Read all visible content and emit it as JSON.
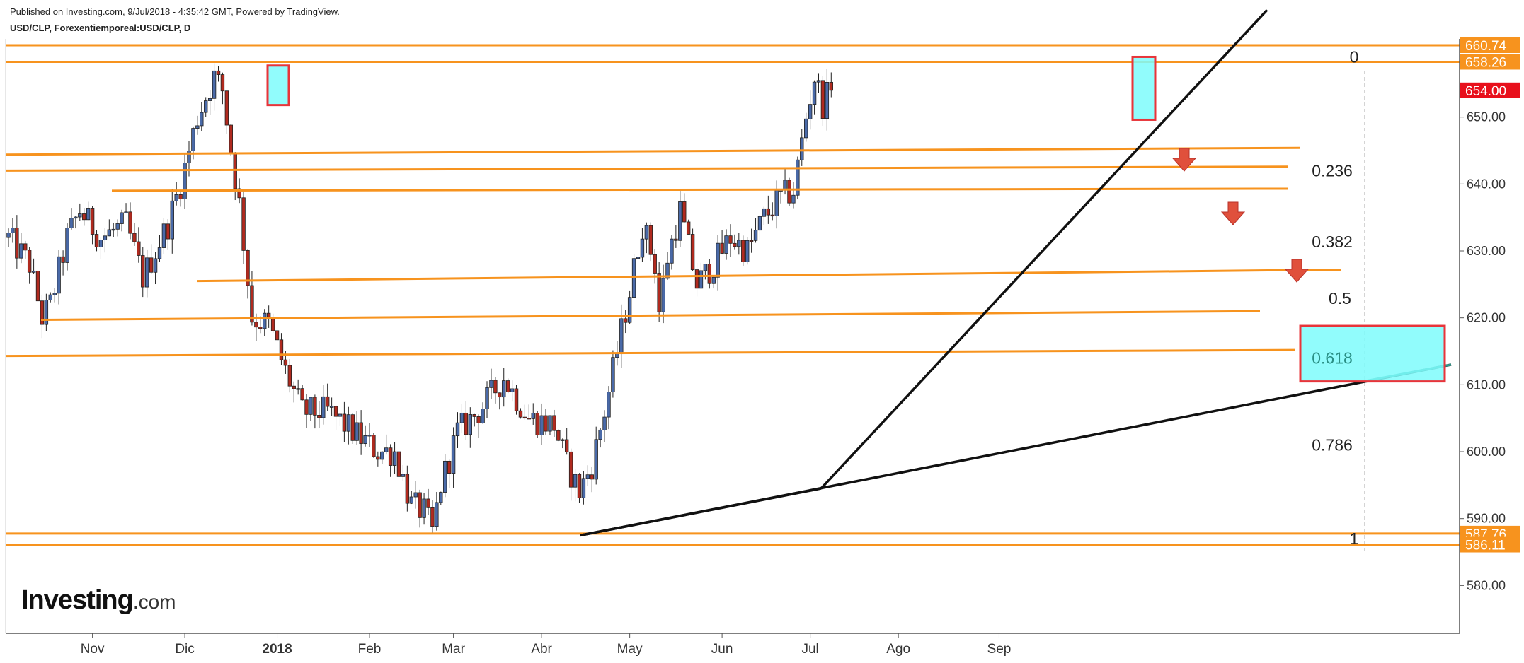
{
  "header": {
    "published": "Published on Investing.com, 9/Jul/2018 - 4:35:42 GMT, Powered by TradingView.",
    "symbol": "USD/CLP, Forexentiemporeal:USD/CLP, D"
  },
  "logo": {
    "main": "Investing",
    "suffix": ".com"
  },
  "chart_data": {
    "type": "candlestick",
    "y_range": [
      574,
      665
    ],
    "y_ticks": [
      "580.00",
      "590.00",
      "600.00",
      "610.00",
      "620.00",
      "630.00",
      "640.00",
      "650.00"
    ],
    "x_ticks": [
      {
        "label": "Nov",
        "bold": false
      },
      {
        "label": "Dic",
        "bold": false
      },
      {
        "label": "2018",
        "bold": true
      },
      {
        "label": "Feb",
        "bold": false
      },
      {
        "label": "Mar",
        "bold": false
      },
      {
        "label": "Abr",
        "bold": false
      },
      {
        "label": "May",
        "bold": false
      },
      {
        "label": "Jun",
        "bold": false
      },
      {
        "label": "Jul",
        "bold": false
      },
      {
        "label": "Ago",
        "bold": false
      },
      {
        "label": "Sep",
        "bold": false
      }
    ],
    "price_badges": [
      {
        "label": "660.74",
        "value": 660.74,
        "color": "#f7931e"
      },
      {
        "label": "658.26",
        "value": 658.26,
        "color": "#f7931e"
      },
      {
        "label": "654.00",
        "value": 654.0,
        "color": "#e8101c"
      },
      {
        "label": "587.76",
        "value": 587.76,
        "color": "#f7931e"
      },
      {
        "label": "586.11",
        "value": 586.11,
        "color": "#f7931e"
      }
    ],
    "fib_labels": [
      "0",
      "0.236",
      "0.382",
      "0.5",
      "0.618",
      "0.786",
      "1"
    ],
    "colors": {
      "up": "#4a6aa8",
      "down": "#b02a1f",
      "support": "#f7931e",
      "trend": "#111111",
      "highlight_fill": "#7efcfc",
      "highlight_border": "#e8343a",
      "arrow": "#e0503c"
    },
    "start_close": 632,
    "waypoints": [
      [
        0,
        632
      ],
      [
        5,
        628
      ],
      [
        8,
        620
      ],
      [
        10,
        622
      ],
      [
        14,
        632
      ],
      [
        17,
        636
      ],
      [
        22,
        632
      ],
      [
        28,
        634
      ],
      [
        32,
        626
      ],
      [
        38,
        634
      ],
      [
        41,
        640
      ],
      [
        45,
        650
      ],
      [
        49,
        656
      ],
      [
        51,
        654
      ],
      [
        53,
        645
      ],
      [
        55,
        637
      ],
      [
        58,
        620
      ],
      [
        62,
        619
      ],
      [
        66,
        612
      ],
      [
        70,
        606
      ],
      [
        76,
        606
      ],
      [
        82,
        603
      ],
      [
        88,
        600
      ],
      [
        92,
        600
      ],
      [
        96,
        592
      ],
      [
        99,
        591
      ],
      [
        101,
        588
      ],
      [
        103,
        595
      ],
      [
        107,
        603
      ],
      [
        112,
        606
      ],
      [
        118,
        611
      ],
      [
        124,
        605
      ],
      [
        130,
        604
      ],
      [
        133,
        598
      ],
      [
        136,
        594
      ],
      [
        139,
        598
      ],
      [
        142,
        606
      ],
      [
        145,
        615
      ],
      [
        148,
        624
      ],
      [
        151,
        634
      ],
      [
        154,
        628
      ],
      [
        155,
        621
      ],
      [
        157,
        629
      ],
      [
        160,
        636
      ],
      [
        164,
        625
      ],
      [
        168,
        628
      ],
      [
        172,
        632
      ],
      [
        176,
        630
      ],
      [
        180,
        635
      ],
      [
        184,
        638
      ],
      [
        187,
        639
      ],
      [
        190,
        650
      ],
      [
        192,
        656
      ],
      [
        194,
        652
      ],
      [
        196,
        654
      ]
    ]
  }
}
